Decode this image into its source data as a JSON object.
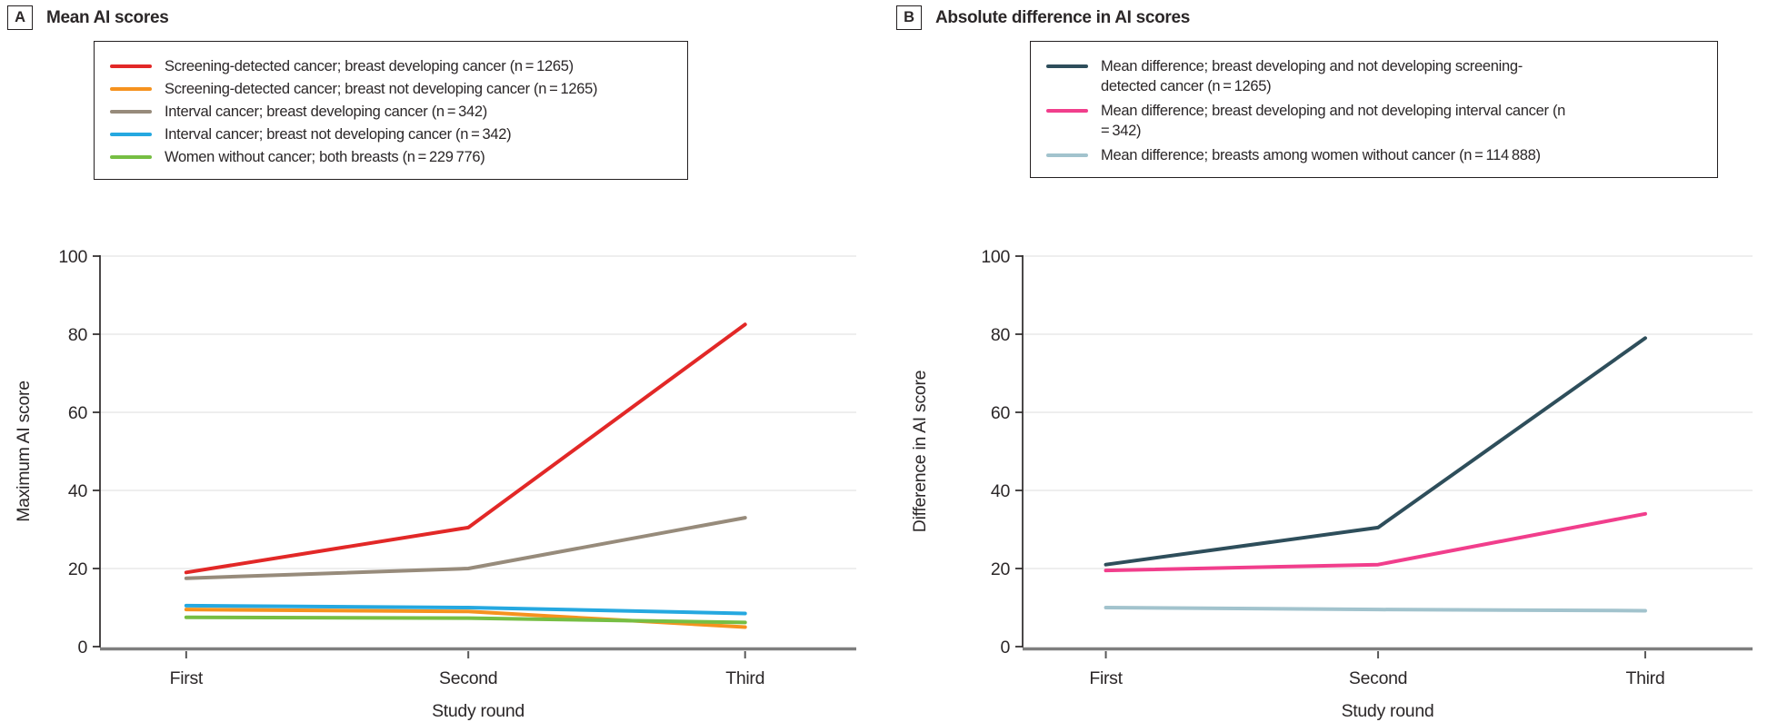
{
  "figure": {
    "panels": [
      {
        "letter": "A",
        "title": "Mean AI scores"
      },
      {
        "letter": "B",
        "title": "Absolute difference in AI scores"
      }
    ]
  },
  "chart_data": [
    {
      "type": "line",
      "panel": "A",
      "title": "Mean AI scores",
      "x_categories": [
        "First",
        "Second",
        "Third"
      ],
      "xlabel": "Study round",
      "ylabel": "Maximum AI score",
      "ylim": [
        0,
        100
      ],
      "yticks": [
        0,
        20,
        40,
        60,
        80,
        100
      ],
      "grid": "horizontal",
      "legend_position": "top",
      "series": [
        {
          "name": "Screening-detected cancer; breast developing cancer (n = 1265)",
          "color": "#e22827",
          "values": [
            19,
            30.5,
            82.5
          ]
        },
        {
          "name": "Screening-detected cancer; breast not developing cancer (n = 1265)",
          "color": "#f6921e",
          "values": [
            9.5,
            9,
            5
          ]
        },
        {
          "name": "Interval cancer; breast developing cancer (n = 342)",
          "color": "#978b7b",
          "values": [
            17.5,
            20,
            33
          ]
        },
        {
          "name": "Interval cancer; breast not developing cancer (n = 342)",
          "color": "#25a8e0",
          "values": [
            10.5,
            10,
            8.5
          ]
        },
        {
          "name": "Women without cancer; both breasts (n = 229 776)",
          "color": "#76be43",
          "values": [
            7.5,
            7.3,
            6.2
          ]
        }
      ]
    },
    {
      "type": "line",
      "panel": "B",
      "title": "Absolute difference in AI scores",
      "x_categories": [
        "First",
        "Second",
        "Third"
      ],
      "xlabel": "Study round",
      "ylabel": "Difference in AI score",
      "ylim": [
        0,
        100
      ],
      "yticks": [
        0,
        20,
        40,
        60,
        80,
        100
      ],
      "grid": "horizontal",
      "legend_position": "top",
      "series": [
        {
          "name": "Mean difference; breast developing and not developing screening-detected cancer (n = 1265)",
          "color": "#2e4e5b",
          "values": [
            21,
            30.5,
            79
          ]
        },
        {
          "name": "Mean difference; breast developing and not developing interval cancer (n = 342)",
          "color": "#f13e8c",
          "values": [
            19.5,
            21,
            34
          ]
        },
        {
          "name": "Mean difference; breasts among women without cancer (n = 114 888)",
          "color": "#a2c3cd",
          "values": [
            10,
            9.5,
            9.2
          ]
        }
      ]
    }
  ]
}
